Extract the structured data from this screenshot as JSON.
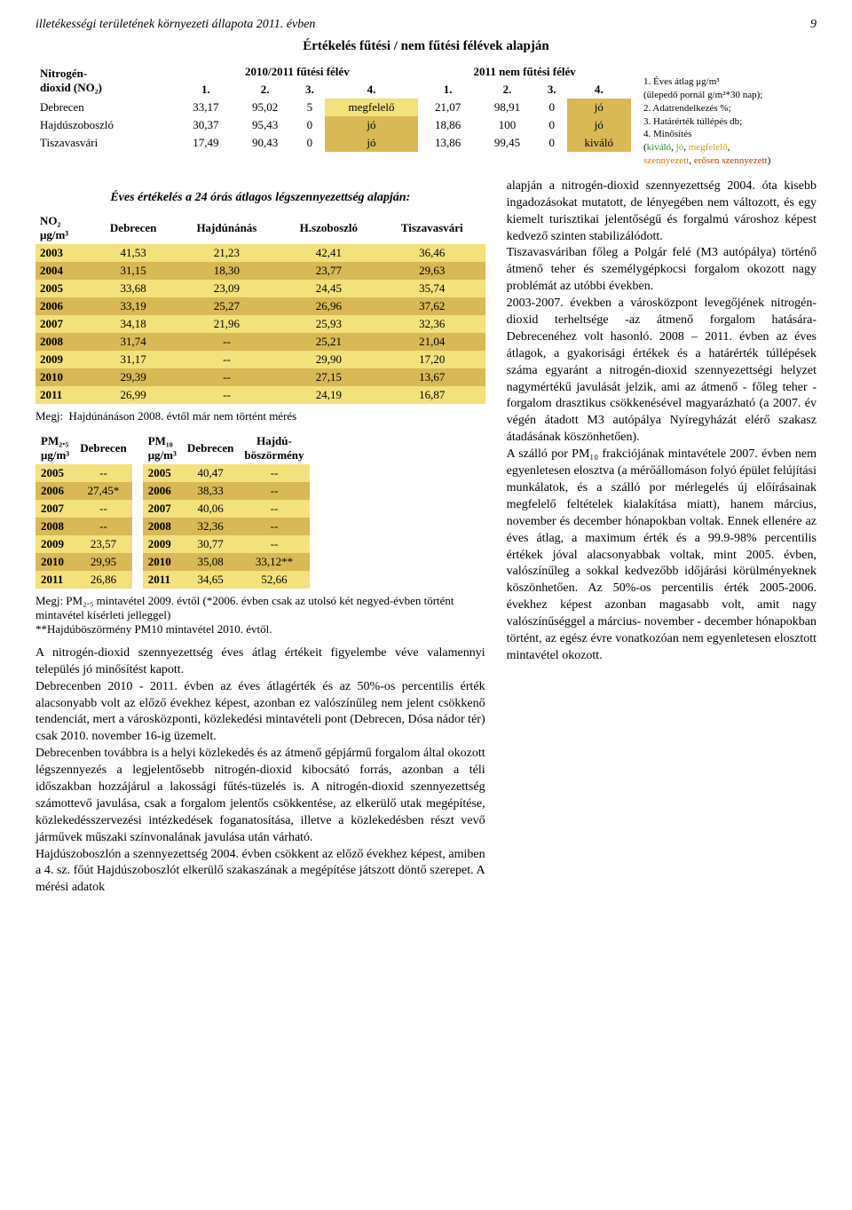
{
  "header": {
    "left": "illetékességi területének környezeti állapota 2011. évben",
    "pageno": "9"
  },
  "title1": "Értékelés fűtési / nem fűtési félévek alapján",
  "legend": {
    "l1": "1. Éves átlag μg/m³",
    "l1b": "(ülepedő pornál g/m²*30 nap);",
    "l2": "2. Adatrendelkezés %;",
    "l3": "3. Határérték túllépés db;",
    "l4": "4. Minősítés",
    "l4a": "kiváló",
    "l4b": "jó",
    "l4c": "megfelelő",
    "l4d": "szennyezett",
    "l4e": "erősen szennyezett"
  },
  "t1": {
    "h_left1": "Nitrogén-",
    "h_left2": "dioxid (NO₂)",
    "h_mid": "2010/2011 fűtési félév",
    "h_right": "2011 nem fűtési félév",
    "c1": "1.",
    "c2": "2.",
    "c3": "3.",
    "c4": "4.",
    "c5": "1.",
    "c6": "2.",
    "c7": "3.",
    "c8": "4.",
    "rows": [
      {
        "name": "Debrecen",
        "a": "33,17",
        "b": "95,02",
        "c": "5",
        "d": "megfelelő",
        "dcolor": "yellow",
        "e": "21,07",
        "f": "98,91",
        "g": "0",
        "h": "jó",
        "hcolor": "gold"
      },
      {
        "name": "Hajdúszoboszló",
        "a": "30,37",
        "b": "95,43",
        "c": "0",
        "d": "jó",
        "dcolor": "gold",
        "e": "18,86",
        "f": "100",
        "g": "0",
        "h": "jó",
        "hcolor": "gold"
      },
      {
        "name": "Tiszavasvári",
        "a": "17,49",
        "b": "90,43",
        "c": "0",
        "d": "jó",
        "dcolor": "gold",
        "e": "13,86",
        "f": "99,45",
        "g": "0",
        "h": "kiváló",
        "hcolor": "gold"
      }
    ]
  },
  "subhead": "Éves értékelés a 24 órás átlagos légszennyezettség alapján:",
  "t2": {
    "h0a": "NO₂",
    "h0b": "μg/m³",
    "h1": "Debrecen",
    "h2": "Hajdúnánás",
    "h3": "H.szoboszló",
    "h4": "Tiszavasvári",
    "rows": [
      {
        "y": "2003",
        "a": "41,53",
        "b": "21,23",
        "c": "42,41",
        "d": "36,46",
        "cls": "yellow"
      },
      {
        "y": "2004",
        "a": "31,15",
        "b": "18,30",
        "c": "23,77",
        "d": "29,63",
        "cls": "gold"
      },
      {
        "y": "2005",
        "a": "33,68",
        "b": "23,09",
        "c": "24,45",
        "d": "35,74",
        "cls": "yellow"
      },
      {
        "y": "2006",
        "a": "33,19",
        "b": "25,27",
        "c": "26,96",
        "d": "37,62",
        "cls": "gold"
      },
      {
        "y": "2007",
        "a": "34,18",
        "b": "21,96",
        "c": "25,93",
        "d": "32,36",
        "cls": "yellow"
      },
      {
        "y": "2008",
        "a": "31,74",
        "b": "--",
        "c": "25,21",
        "d": "21,04",
        "cls": "gold"
      },
      {
        "y": "2009",
        "a": "31,17",
        "b": "--",
        "c": "29,90",
        "d": "17,20",
        "cls": "yellow"
      },
      {
        "y": "2010",
        "a": "29,39",
        "b": "--",
        "c": "27,15",
        "d": "13,67",
        "cls": "gold"
      },
      {
        "y": "2011",
        "a": "26,99",
        "b": "--",
        "c": "24,19",
        "d": "16,87",
        "cls": "yellow"
      }
    ]
  },
  "note1": "Megj:  Hajdúnánáson 2008. évtől már nem történt mérés",
  "pm25": {
    "h0a": "PM₂.₅",
    "h0b": "μg/m³",
    "h1": "Debrecen",
    "rows": [
      {
        "y": "2005",
        "a": "--",
        "cls": "yellow"
      },
      {
        "y": "2006",
        "a": "27,45*",
        "cls": "gold"
      },
      {
        "y": "2007",
        "a": "--",
        "cls": "yellow"
      },
      {
        "y": "2008",
        "a": "--",
        "cls": "gold"
      },
      {
        "y": "2009",
        "a": "23,57",
        "cls": "yellow"
      },
      {
        "y": "2010",
        "a": "29,95",
        "cls": "gold"
      },
      {
        "y": "2011",
        "a": "26,86",
        "cls": "yellow"
      }
    ]
  },
  "pm10": {
    "h0a": "PM₁₀",
    "h0b": "μg/m³",
    "h1": "Debrecen",
    "h2": "Hajdú-",
    "h2b": "böszörmény",
    "rows": [
      {
        "y": "2005",
        "a": "40,47",
        "b": "--",
        "cls": "yellow"
      },
      {
        "y": "2006",
        "a": "38,33",
        "b": "--",
        "cls": "gold"
      },
      {
        "y": "2007",
        "a": "40,06",
        "b": "--",
        "cls": "yellow"
      },
      {
        "y": "2008",
        "a": "32,36",
        "b": "--",
        "cls": "gold"
      },
      {
        "y": "2009",
        "a": "30,77",
        "b": "--",
        "cls": "yellow"
      },
      {
        "y": "2010",
        "a": "35,08",
        "b": "33,12**",
        "cls": "gold"
      },
      {
        "y": "2011",
        "a": "34,65",
        "b": "52,66",
        "cls": "yellow"
      }
    ]
  },
  "note2a": "Megj: PM₂.₅ mintavétel 2009. évtől (*2006. évben csak az utolsó két negyed-évben történt mintavétel kísérleti jelleggel)",
  "note2b": "**Hajdúböszörmény PM10 mintavétel 2010. évtől.",
  "left_body": "A nitrogén-dioxid szennyezettség éves átlag értékeit figyelembe véve valamennyi település jó minősítést kapott.\nDebrecenben 2010 - 2011. évben az éves átlagérték és az 50%-os percentilis érték alacsonyabb volt az előző évekhez képest, azonban ez valószínűleg nem jelent csökkenő tendenciát, mert a városközponti, közlekedési mintavételi pont (Debrecen, Dósa nádor tér) csak 2010. november 16-ig üzemelt.\nDebrecenben továbbra is a helyi közlekedés és az átmenő gépjármű forgalom által okozott légszennyezés a legjelentősebb nitrogén-dioxid kibocsátó forrás, azonban a téli időszakban hozzájárul a lakossági fűtés-tüzelés is. A nitrogén-dioxid szennyezettség számottevő javulása, csak a forgalom jelentős csökkentése, az elkerülő utak megépítése, közlekedésszervezési intézkedések foganatosítása, illetve a közlekedésben részt vevő járművek műszaki színvonalának javulása után várható.\nHajdúszoboszlón a szennyezettség 2004. évben csökkent az előző évekhez képest, amiben a 4. sz. főút Hajdúszoboszlót elkerülő szakaszának a megépítése játszott döntő szerepet. A mérési adatok",
  "right_body": "alapján a nitrogén-dioxid szennyezettség 2004. óta kisebb ingadozásokat mutatott, de lényegében nem változott, és egy kiemelt turisztikai jelentőségű és forgalmú városhoz képest kedvező szinten stabilizálódott.\nTiszavasváriban főleg a Polgár felé (M3 autópálya) történő átmenő teher és személygépkocsi forgalom okozott nagy problémát az utóbbi években.\n2003-2007. években a városközpont levegőjének nitrogén-dioxid terheltsége -az átmenő forgalom hatására- Debrecenéhez volt hasonló. 2008 – 2011. évben az éves átlagok, a gyakorisági értékek és a határérték túllépések száma egyaránt a nitrogén-dioxid szennyezettségi helyzet nagymértékű javulását jelzik, ami az átmenő - főleg teher - forgalom drasztikus csökkenésével magyarázható (a 2007. év végén átadott M3 autópálya Nyíregyházát elérő szakasz átadásának köszönhetően).\n\nA szálló por PM₁₀ frakciójának mintavétele 2007. évben nem egyenletesen elosztva (a mérőállomáson folyó épület felújítási munkálatok, és a szálló por mérlegelés új előírásainak megfelelő feltételek kialakítása miatt), hanem március, november és december hónapokban voltak. Ennek ellenére az éves átlag, a maximum érték és a 99.9-98% percentilis értékek jóval alacsonyabbak voltak, mint 2005. évben, valószínűleg a sokkal kedvezőbb időjárási körülményeknek köszönhetően. Az 50%-os percentilis érték 2005-2006. évekhez képest azonban magasabb volt, amit nagy valószínűséggel a március- november - december hónapokban történt, az egész évre vonatkozóan nem egyenletesen elosztott mintavétel okozott."
}
